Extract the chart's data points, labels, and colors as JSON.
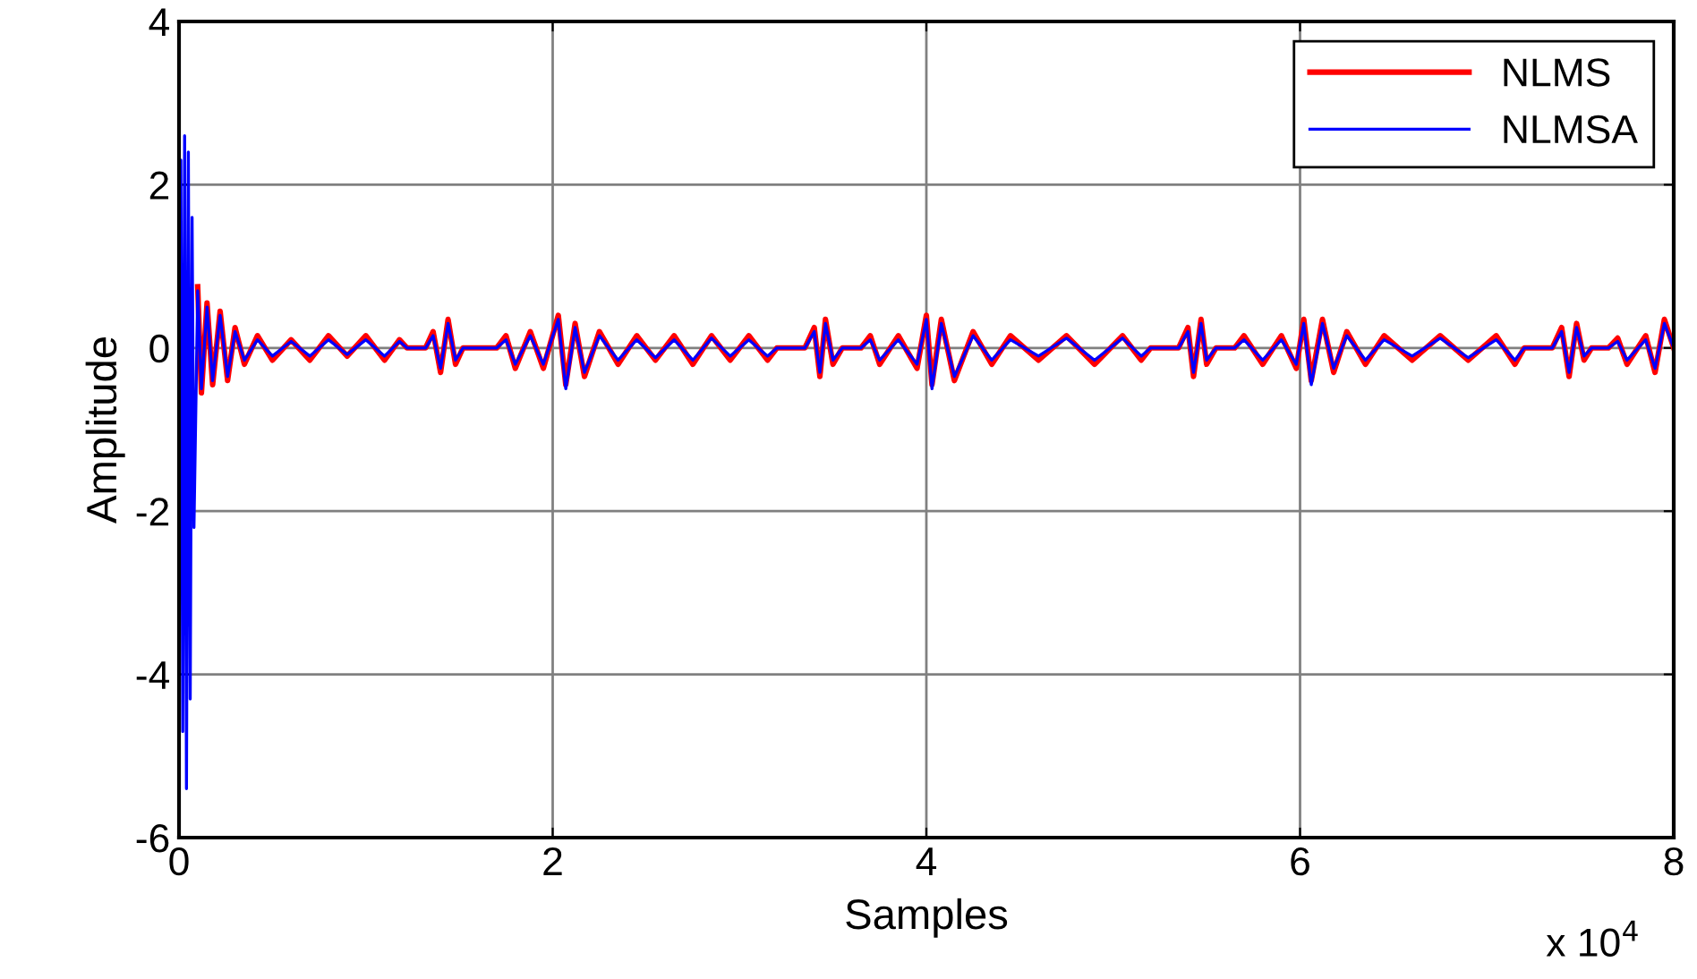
{
  "chart_data": {
    "type": "line",
    "xlabel": "Samples",
    "ylabel": "Amplitude",
    "xlim": [
      0,
      8
    ],
    "ylim": [
      -6,
      4
    ],
    "xticks": [
      0,
      2,
      4,
      6,
      8
    ],
    "yticks": [
      -6,
      -4,
      -2,
      0,
      2,
      4
    ],
    "grid": true,
    "legend": "top right",
    "annotations": [
      "x 10$^{4}$"
    ],
    "series": [
      {
        "name": "NLMS",
        "color": "#ff0000",
        "x": [
          0.1,
          0.12,
          0.15,
          0.18,
          0.22,
          0.26,
          0.3,
          0.35,
          0.42,
          0.5,
          0.6,
          0.7,
          0.8,
          0.9,
          1.0,
          1.1,
          1.18,
          1.22,
          1.32,
          1.36,
          1.4,
          1.44,
          1.48,
          1.52,
          1.7,
          1.75,
          1.8,
          1.88,
          1.95,
          2.03,
          2.07,
          2.12,
          2.17,
          2.25,
          2.35,
          2.45,
          2.55,
          2.65,
          2.75,
          2.85,
          2.95,
          3.05,
          3.15,
          3.2,
          3.35,
          3.4,
          3.43,
          3.46,
          3.5,
          3.55,
          3.65,
          3.7,
          3.75,
          3.85,
          3.95,
          4.0,
          4.03,
          4.08,
          4.15,
          4.25,
          4.35,
          4.45,
          4.6,
          4.75,
          4.9,
          5.05,
          5.15,
          5.2,
          5.35,
          5.4,
          5.43,
          5.47,
          5.5,
          5.55,
          5.65,
          5.7,
          5.8,
          5.9,
          5.98,
          6.02,
          6.06,
          6.12,
          6.18,
          6.25,
          6.35,
          6.45,
          6.6,
          6.75,
          6.9,
          7.05,
          7.15,
          7.2,
          7.35,
          7.4,
          7.44,
          7.48,
          7.52,
          7.56,
          7.65,
          7.7,
          7.75,
          7.85,
          7.9,
          7.95,
          8.0
        ],
        "values": [
          0.75,
          -0.55,
          0.55,
          -0.45,
          0.45,
          -0.4,
          0.25,
          -0.2,
          0.15,
          -0.15,
          0.1,
          -0.15,
          0.15,
          -0.1,
          0.15,
          -0.15,
          0.1,
          0,
          0,
          0.2,
          -0.3,
          0.35,
          -0.2,
          0,
          0,
          0.15,
          -0.25,
          0.2,
          -0.25,
          0.4,
          -0.45,
          0.3,
          -0.35,
          0.2,
          -0.2,
          0.15,
          -0.15,
          0.15,
          -0.2,
          0.15,
          -0.15,
          0.15,
          -0.15,
          0,
          0,
          0.25,
          -0.35,
          0.35,
          -0.2,
          0,
          0,
          0.15,
          -0.2,
          0.15,
          -0.25,
          0.4,
          -0.45,
          0.35,
          -0.4,
          0.2,
          -0.2,
          0.15,
          -0.15,
          0.15,
          -0.2,
          0.15,
          -0.15,
          0,
          0,
          0.25,
          -0.35,
          0.35,
          -0.2,
          0,
          0,
          0.15,
          -0.2,
          0.15,
          -0.25,
          0.35,
          -0.4,
          0.35,
          -0.3,
          0.2,
          -0.2,
          0.15,
          -0.15,
          0.15,
          -0.15,
          0.15,
          -0.2,
          0,
          0,
          0.25,
          -0.35,
          0.3,
          -0.15,
          0,
          0,
          0.12,
          -0.2,
          0.15,
          -0.3,
          0.35,
          0
        ]
      },
      {
        "name": "NLMSA",
        "color": "#0000ff",
        "x": [
          0,
          0.01,
          0.02,
          0.03,
          0.04,
          0.05,
          0.06,
          0.07,
          0.08,
          0.1,
          0.12,
          0.15,
          0.18,
          0.22,
          0.26,
          0.3,
          0.35,
          0.42,
          0.5,
          0.6,
          0.7,
          0.8,
          0.9,
          1.0,
          1.1,
          1.18,
          1.22,
          1.32,
          1.36,
          1.4,
          1.44,
          1.48,
          1.52,
          1.7,
          1.75,
          1.8,
          1.88,
          1.95,
          2.03,
          2.07,
          2.12,
          2.17,
          2.25,
          2.35,
          2.45,
          2.55,
          2.65,
          2.75,
          2.85,
          2.95,
          3.05,
          3.15,
          3.2,
          3.35,
          3.4,
          3.43,
          3.46,
          3.5,
          3.55,
          3.65,
          3.7,
          3.75,
          3.85,
          3.95,
          4.0,
          4.03,
          4.08,
          4.15,
          4.25,
          4.35,
          4.45,
          4.6,
          4.75,
          4.9,
          5.05,
          5.15,
          5.2,
          5.35,
          5.4,
          5.43,
          5.47,
          5.5,
          5.55,
          5.65,
          5.7,
          5.8,
          5.9,
          5.98,
          6.02,
          6.06,
          6.12,
          6.18,
          6.25,
          6.35,
          6.45,
          6.6,
          6.75,
          6.9,
          7.05,
          7.15,
          7.2,
          7.35,
          7.4,
          7.44,
          7.48,
          7.52,
          7.56,
          7.65,
          7.7,
          7.75,
          7.85,
          7.9,
          7.95,
          8.0
        ],
        "values": [
          0,
          2.3,
          -4.7,
          2.6,
          -5.4,
          2.4,
          -4.3,
          1.6,
          -2.2,
          0.7,
          -0.5,
          0.5,
          -0.4,
          0.4,
          -0.35,
          0.2,
          -0.15,
          0.1,
          -0.1,
          0.08,
          -0.1,
          0.1,
          -0.08,
          0.1,
          -0.1,
          0.08,
          0,
          0,
          0.15,
          -0.25,
          0.3,
          -0.15,
          0,
          0,
          0.1,
          -0.2,
          0.15,
          -0.2,
          0.35,
          -0.5,
          0.25,
          -0.3,
          0.15,
          -0.15,
          0.1,
          -0.12,
          0.1,
          -0.15,
          0.12,
          -0.1,
          0.1,
          -0.1,
          0,
          0,
          0.2,
          -0.3,
          0.3,
          -0.15,
          0,
          0,
          0.1,
          -0.15,
          0.1,
          -0.2,
          0.35,
          -0.5,
          0.3,
          -0.35,
          0.15,
          -0.15,
          0.1,
          -0.1,
          0.12,
          -0.15,
          0.12,
          -0.1,
          0,
          0,
          0.2,
          -0.3,
          0.3,
          -0.15,
          0,
          0,
          0.1,
          -0.15,
          0.1,
          -0.2,
          0.3,
          -0.45,
          0.3,
          -0.25,
          0.15,
          -0.15,
          0.1,
          -0.1,
          0.12,
          -0.12,
          0.1,
          -0.15,
          0,
          0,
          0.2,
          -0.3,
          0.25,
          -0.1,
          0,
          0,
          0.08,
          -0.15,
          0.1,
          -0.25,
          0.3,
          0
        ]
      }
    ]
  }
}
